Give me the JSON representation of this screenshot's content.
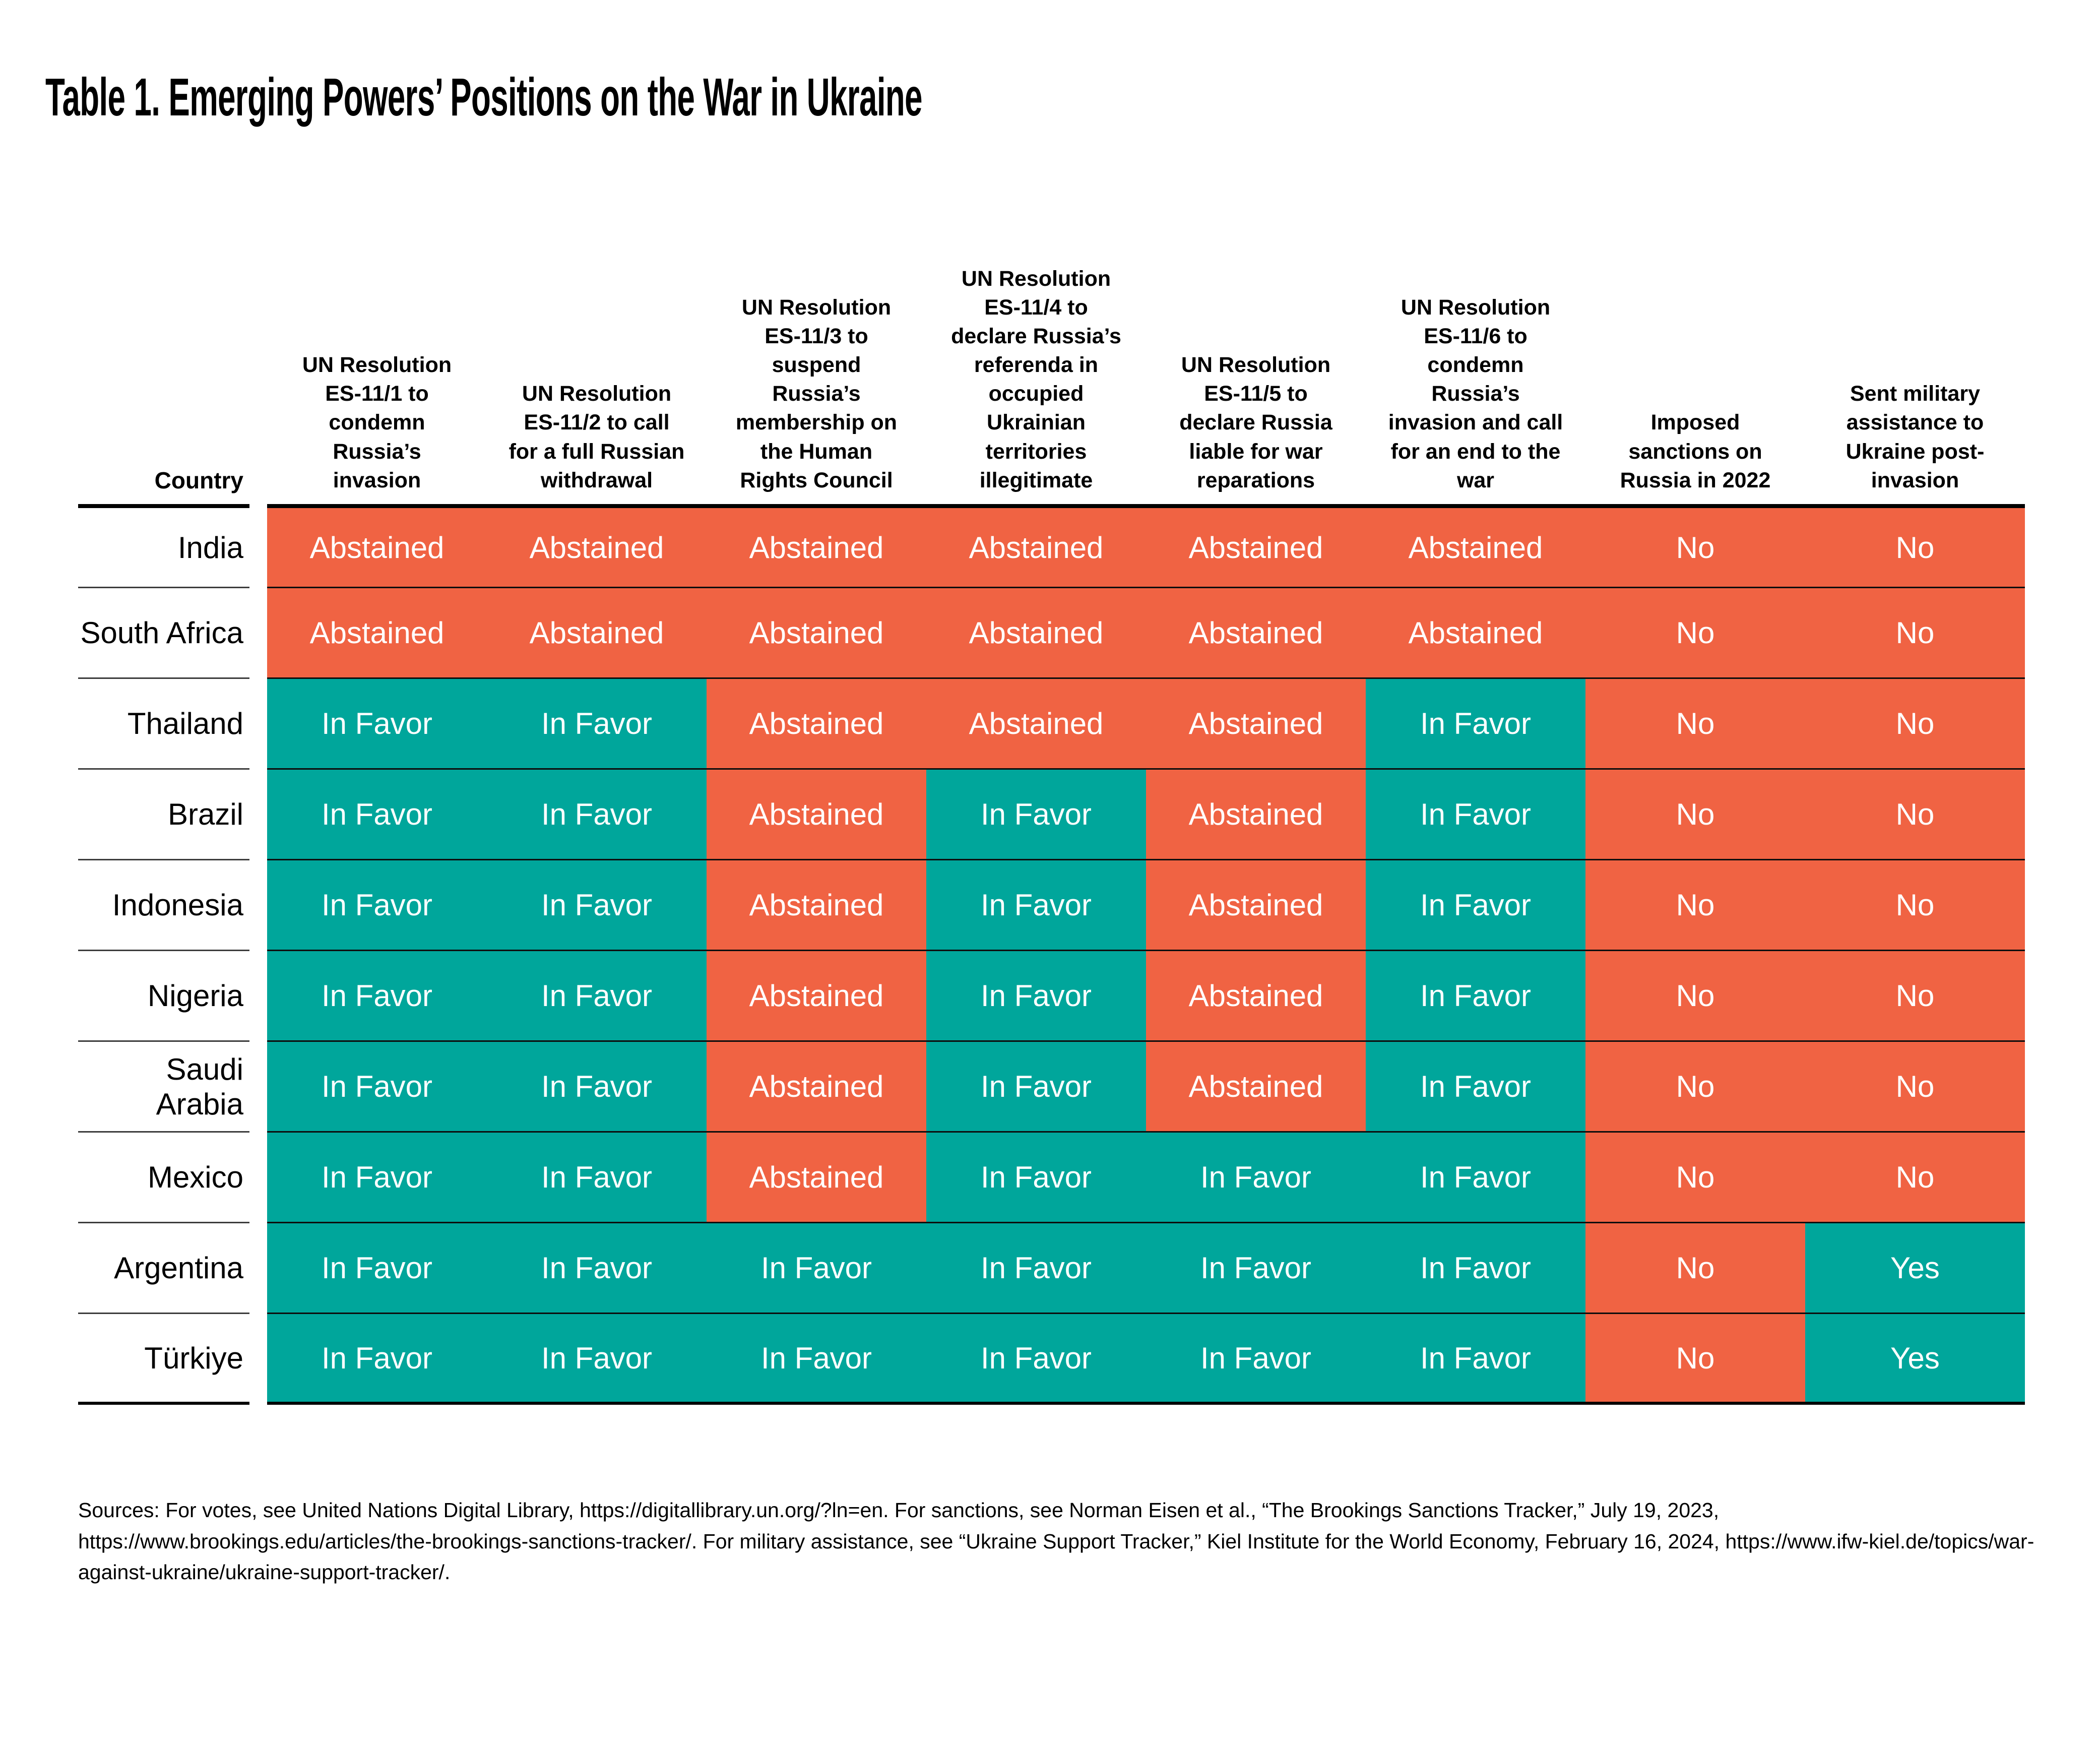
{
  "chart_data": {
    "type": "table",
    "title": "Table 1. Emerging Powers’ Positions on the War in Ukraine",
    "country_column_header": "Country",
    "columns": [
      "UN Resolution ES-11/1 to condemn Russia’s invasion",
      "UN Resolution ES-11/2 to call for a full Russian withdrawal",
      "UN Resolution ES-11/3 to suspend Russia’s membership on the Human Rights Council",
      "UN Resolution ES-11/4 to declare Russia’s referenda in occupied Ukrainian territories illegitimate",
      "UN Resolution ES-11/5 to declare Russia liable for war reparations",
      "UN Resolution ES-11/6 to condemn Russia’s invasion and call for an end to the war",
      "Imposed sanctions on Russia in 2022",
      "Sent military assistance to Ukraine post-invasion"
    ],
    "rows": [
      {
        "country": "India",
        "values": [
          "Abstained",
          "Abstained",
          "Abstained",
          "Abstained",
          "Abstained",
          "Abstained",
          "No",
          "No"
        ]
      },
      {
        "country": "South Africa",
        "values": [
          "Abstained",
          "Abstained",
          "Abstained",
          "Abstained",
          "Abstained",
          "Abstained",
          "No",
          "No"
        ]
      },
      {
        "country": "Thailand",
        "values": [
          "In Favor",
          "In Favor",
          "Abstained",
          "Abstained",
          "Abstained",
          "In Favor",
          "No",
          "No"
        ]
      },
      {
        "country": "Brazil",
        "values": [
          "In Favor",
          "In Favor",
          "Abstained",
          "In Favor",
          "Abstained",
          "In Favor",
          "No",
          "No"
        ]
      },
      {
        "country": "Indonesia",
        "values": [
          "In Favor",
          "In Favor",
          "Abstained",
          "In Favor",
          "Abstained",
          "In Favor",
          "No",
          "No"
        ]
      },
      {
        "country": "Nigeria",
        "values": [
          "In Favor",
          "In Favor",
          "Abstained",
          "In Favor",
          "Abstained",
          "In Favor",
          "No",
          "No"
        ]
      },
      {
        "country": "Saudi Arabia",
        "values": [
          "In Favor",
          "In Favor",
          "Abstained",
          "In Favor",
          "Abstained",
          "In Favor",
          "No",
          "No"
        ]
      },
      {
        "country": "Mexico",
        "values": [
          "In Favor",
          "In Favor",
          "Abstained",
          "In Favor",
          "In Favor",
          "In Favor",
          "No",
          "No"
        ]
      },
      {
        "country": "Argentina",
        "values": [
          "In Favor",
          "In Favor",
          "In Favor",
          "In Favor",
          "In Favor",
          "In Favor",
          "No",
          "Yes"
        ]
      },
      {
        "country": "Türkiye",
        "values": [
          "In Favor",
          "In Favor",
          "In Favor",
          "In Favor",
          "In Favor",
          "In Favor",
          "No",
          "Yes"
        ]
      }
    ],
    "color_coding": {
      "In Favor": "teal",
      "Yes": "teal",
      "Abstained": "orange",
      "No": "orange"
    },
    "colors": {
      "teal": "#00A69B",
      "orange": "#F06343",
      "cell_text": "#FFFFFF"
    },
    "layout_hints": {
      "grid": "horizontal black rules between rows",
      "legend": "none"
    }
  },
  "sources": "Sources: For votes, see United Nations Digital Library, https://digitallibrary.un.org/?ln=en. For sanctions, see Norman Eisen et al., “The Brookings Sanctions Tracker,” July 19, 2023, https://www.brookings.edu/articles/the-brookings-sanctions-tracker/. For military assistance, see “Ukraine Support Tracker,” Kiel Institute for the World Economy, February 16, 2024, https://www.ifw-kiel.de/topics/war-against-ukraine/ukraine-support-tracker/."
}
